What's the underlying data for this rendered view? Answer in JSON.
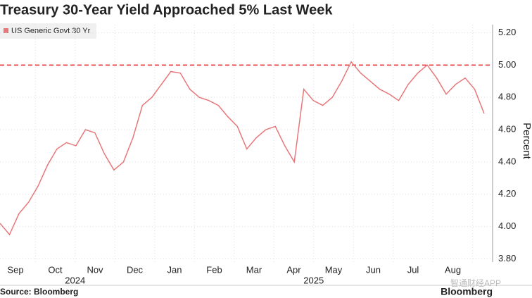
{
  "chart_data": {
    "type": "line",
    "title": "Treasury 30-Year Yield Approached 5% Last Week",
    "series": [
      {
        "name": "US Generic Govt 30 Yr",
        "color": "#e8777a",
        "values": [
          4.02,
          3.95,
          4.08,
          4.15,
          4.25,
          4.38,
          4.48,
          4.52,
          4.5,
          4.6,
          4.58,
          4.45,
          4.35,
          4.4,
          4.55,
          4.75,
          4.8,
          4.88,
          4.96,
          4.95,
          4.85,
          4.8,
          4.78,
          4.75,
          4.68,
          4.62,
          4.48,
          4.55,
          4.6,
          4.62,
          4.5,
          4.4,
          4.85,
          4.78,
          4.75,
          4.8,
          4.9,
          5.02,
          4.95,
          4.9,
          4.85,
          4.82,
          4.78,
          4.88,
          4.95,
          5.0,
          4.92,
          4.82,
          4.88,
          4.92,
          4.85,
          4.7
        ]
      }
    ],
    "months": [
      "Sep",
      "Oct",
      "Nov",
      "Dec",
      "Jan",
      "Feb",
      "Mar",
      "Apr",
      "May",
      "Jun",
      "Jul",
      "Aug"
    ],
    "years": [
      "2024",
      "2025"
    ],
    "ylim": [
      3.78,
      5.25
    ],
    "yticks": [
      {
        "value": 3.8,
        "label": "3.80"
      },
      {
        "value": 4.0,
        "label": "4.00"
      },
      {
        "value": 4.2,
        "label": "4.20"
      },
      {
        "value": 4.4,
        "label": "4.40"
      },
      {
        "value": 4.6,
        "label": "4.60"
      },
      {
        "value": 4.8,
        "label": "4.80"
      },
      {
        "value": 5.0,
        "label": "5.00"
      },
      {
        "value": 5.2,
        "label": "5.20"
      }
    ],
    "y_label": "Percent",
    "reference_line": {
      "value": 5,
      "color": "#e8202a"
    },
    "grid": true,
    "source": "Source: Bloomberg",
    "logo": "Bloomberg",
    "watermark": "智通财经APP"
  }
}
